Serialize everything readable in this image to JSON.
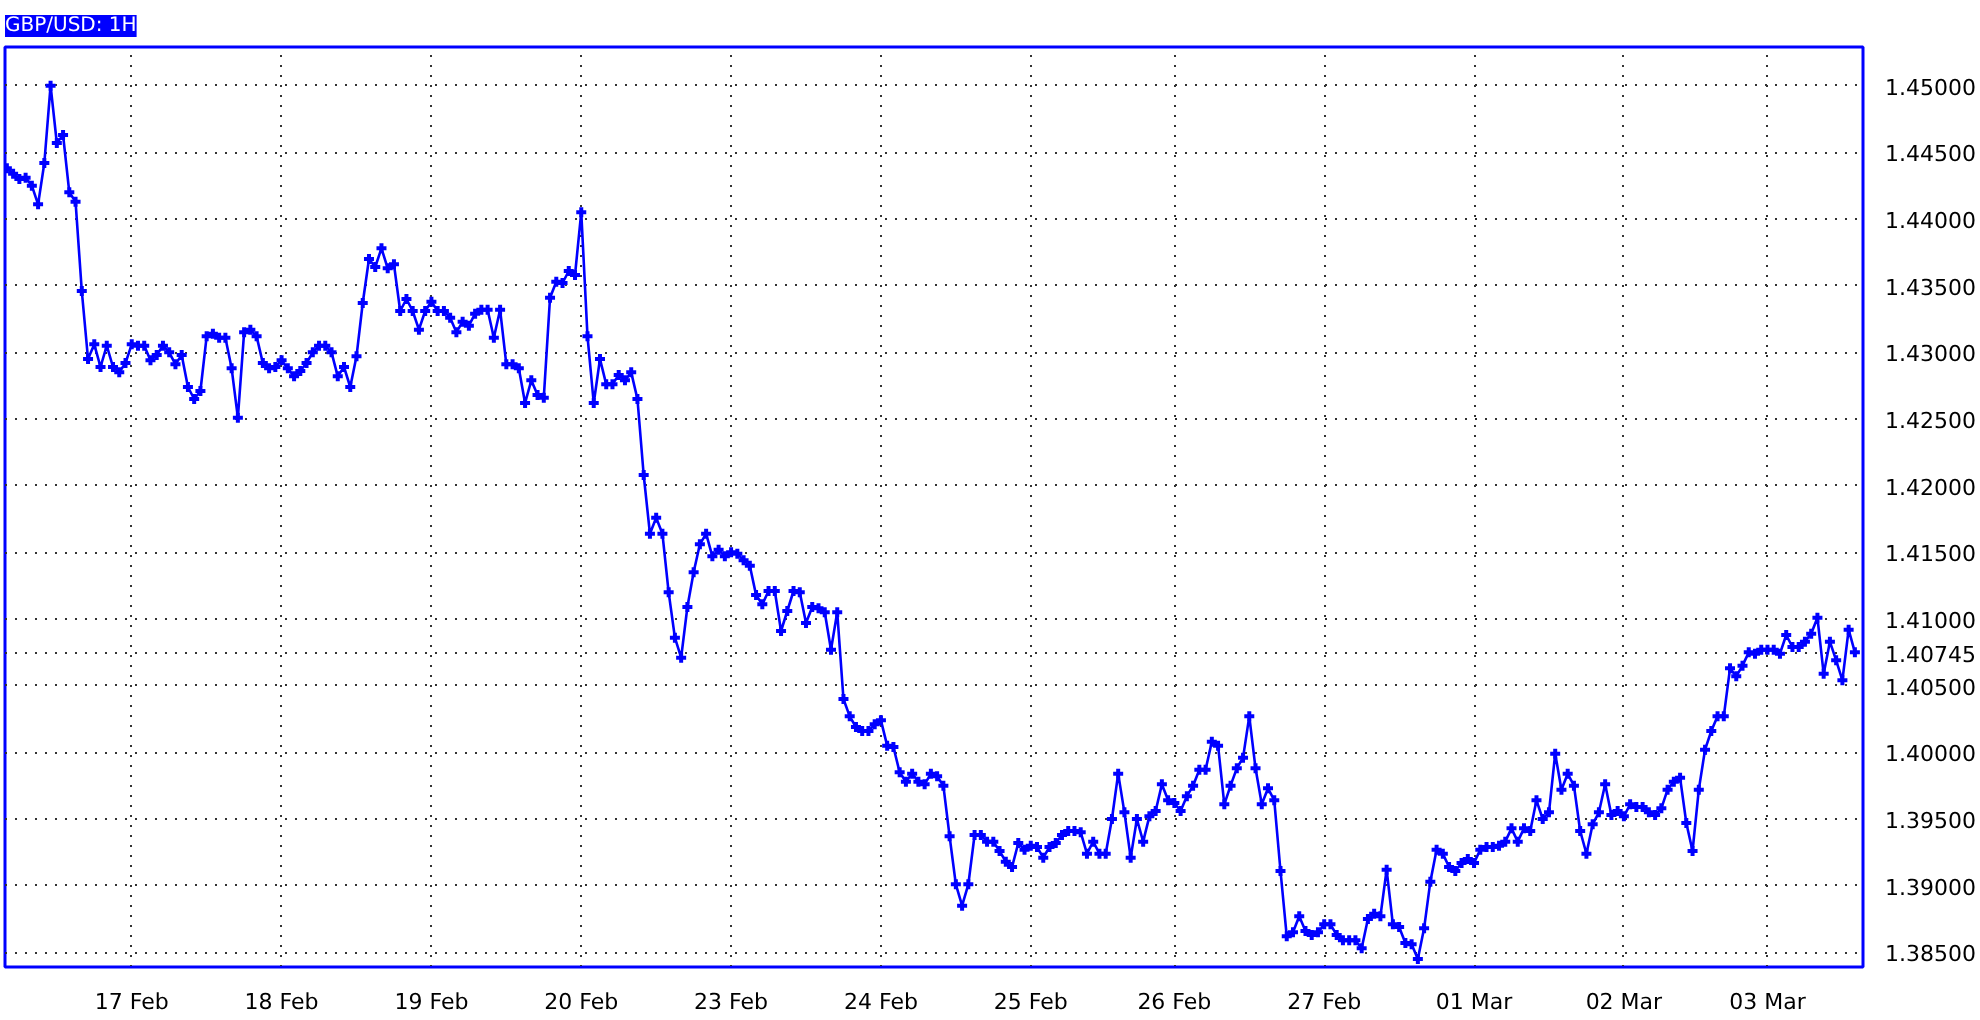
{
  "chart_data": {
    "type": "line",
    "title": "GBP/USD: 1H",
    "categories": [
      null,
      null,
      null,
      null,
      null,
      null,
      null,
      null,
      null,
      null,
      null,
      null,
      null,
      null,
      null,
      null,
      null,
      null,
      null,
      null,
      "17 Feb",
      null,
      null,
      null,
      null,
      null,
      null,
      null,
      null,
      null,
      null,
      null,
      null,
      null,
      null,
      null,
      null,
      null,
      null,
      null,
      null,
      null,
      null,
      null,
      "18 Feb",
      null,
      null,
      null,
      null,
      null,
      null,
      null,
      null,
      null,
      null,
      null,
      null,
      null,
      null,
      null,
      null,
      null,
      null,
      null,
      null,
      null,
      null,
      null,
      "19 Feb",
      null,
      null,
      null,
      null,
      null,
      null,
      null,
      null,
      null,
      null,
      null,
      null,
      null,
      null,
      null,
      null,
      null,
      null,
      null,
      null,
      null,
      null,
      null,
      "20 Feb",
      null,
      null,
      null,
      null,
      null,
      null,
      null,
      null,
      null,
      null,
      null,
      null,
      null,
      null,
      null,
      null,
      null,
      null,
      null,
      null,
      null,
      null,
      null,
      "23 Feb",
      null,
      null,
      null,
      null,
      null,
      null,
      null,
      null,
      null,
      null,
      null,
      null,
      null,
      null,
      null,
      null,
      null,
      null,
      null,
      null,
      null,
      null,
      null,
      "24 Feb",
      null,
      null,
      null,
      null,
      null,
      null,
      null,
      null,
      null,
      null,
      null,
      null,
      null,
      null,
      null,
      null,
      null,
      null,
      null,
      null,
      null,
      null,
      null,
      "25 Feb",
      null,
      null,
      null,
      null,
      null,
      null,
      null,
      null,
      null,
      null,
      null,
      null,
      null,
      null,
      null,
      null,
      null,
      null,
      null,
      null,
      null,
      null,
      "26 Feb",
      null,
      null,
      null,
      null,
      null,
      null,
      null,
      null,
      null,
      null,
      null,
      null,
      null,
      null,
      null,
      null,
      null,
      null,
      null,
      null,
      null,
      null,
      null,
      "27 Feb",
      null,
      null,
      null,
      null,
      null,
      null,
      null,
      null,
      null,
      null,
      null,
      null,
      null,
      null,
      null,
      null,
      null,
      null,
      null,
      null,
      null,
      null,
      null,
      "01 Mar",
      null,
      null,
      null,
      null,
      null,
      null,
      null,
      null,
      null,
      null,
      null,
      null,
      null,
      null,
      null,
      null,
      null,
      null,
      null,
      null,
      null,
      null,
      null,
      "02 Mar",
      null,
      null,
      null,
      null,
      null,
      null,
      null,
      null,
      null,
      null,
      null,
      null,
      null,
      null,
      null,
      null,
      null,
      null,
      null,
      null,
      null,
      null,
      "03 Mar",
      null,
      null,
      null,
      null,
      null,
      null,
      null,
      null,
      null,
      null,
      null,
      null,
      null,
      null
    ],
    "series": [
      {
        "color": "#0000ff",
        "values": [
          1.4438,
          1.4434,
          1.443,
          1.4431,
          1.4425,
          1.4411,
          1.4442,
          1.45,
          1.4457,
          1.4463,
          1.442,
          1.4413,
          1.4346,
          1.4295,
          1.4306,
          1.4289,
          1.4305,
          1.4289,
          1.4285,
          1.4292,
          1.4306,
          1.4305,
          1.4305,
          1.4294,
          1.4298,
          1.4305,
          1.43,
          1.4291,
          1.4298,
          1.4274,
          1.4265,
          1.4271,
          1.4312,
          1.4314,
          1.4311,
          1.4311,
          1.4288,
          1.4251,
          1.4315,
          1.4317,
          1.4312,
          1.4292,
          1.4288,
          1.4289,
          1.4294,
          1.4288,
          1.4282,
          1.4286,
          1.4292,
          1.43,
          1.4305,
          1.4305,
          1.43,
          1.4282,
          1.4289,
          1.4274,
          1.4297,
          1.4337,
          1.437,
          1.4364,
          1.4378,
          1.4363,
          1.4366,
          1.4331,
          1.434,
          1.4331,
          1.4317,
          1.4331,
          1.4338,
          1.4331,
          1.4331,
          1.4326,
          1.4315,
          1.4323,
          1.432,
          1.4329,
          1.4332,
          1.4332,
          1.4311,
          1.4332,
          1.4291,
          1.4291,
          1.4288,
          1.4262,
          1.4279,
          1.4268,
          1.4266,
          1.4341,
          1.4353,
          1.4352,
          1.4361,
          1.4358,
          1.4405,
          1.4312,
          1.4262,
          1.4295,
          1.4276,
          1.4276,
          1.4283,
          1.4279,
          1.4285,
          1.4265,
          1.4208,
          1.4164,
          1.4176,
          1.4164,
          1.412,
          1.4086,
          1.4071,
          1.4109,
          1.4135,
          1.4156,
          1.4164,
          1.4147,
          1.4152,
          1.4147,
          1.415,
          1.4149,
          1.4144,
          1.414,
          1.4118,
          1.4111,
          1.4121,
          1.4121,
          1.4091,
          1.4106,
          1.4121,
          1.412,
          1.4097,
          1.4109,
          1.4108,
          1.4105,
          1.4077,
          1.4105,
          1.404,
          1.4027,
          1.4019,
          1.4016,
          1.4016,
          1.4021,
          1.4024,
          1.4005,
          1.4004,
          1.3985,
          1.3978,
          1.3984,
          1.3978,
          1.3976,
          1.3984,
          1.3982,
          1.3975,
          1.3937,
          1.3901,
          1.3885,
          1.3901,
          1.3938,
          1.3938,
          1.3933,
          1.3933,
          1.3926,
          1.3918,
          1.3914,
          1.3932,
          1.3927,
          1.393,
          1.3929,
          1.3921,
          1.3929,
          1.3932,
          1.3938,
          1.3941,
          1.3941,
          1.394,
          1.3924,
          1.3933,
          1.3924,
          1.3924,
          1.395,
          1.3984,
          1.3955,
          1.3921,
          1.395,
          1.3933,
          1.3952,
          1.3956,
          1.3976,
          1.3964,
          1.3962,
          1.3956,
          1.3967,
          1.3975,
          1.3987,
          1.3987,
          1.4008,
          1.4005,
          1.3961,
          1.3975,
          1.3988,
          1.3996,
          1.4027,
          1.3988,
          1.3961,
          1.3973,
          1.3964,
          1.3911,
          1.3862,
          1.3865,
          1.3877,
          1.3866,
          1.3863,
          1.3865,
          1.3871,
          1.3871,
          1.3863,
          1.3859,
          1.3859,
          1.3859,
          1.3853,
          1.3875,
          1.3879,
          1.3877,
          1.3912,
          1.3871,
          1.3869,
          1.3857,
          1.3856,
          1.3845,
          1.3868,
          1.3903,
          1.3927,
          1.3924,
          1.3914,
          1.3911,
          1.3917,
          1.392,
          1.3917,
          1.3927,
          1.3929,
          1.3929,
          1.393,
          1.3933,
          1.3943,
          1.3933,
          1.3943,
          1.3941,
          1.3964,
          1.395,
          1.3955,
          1.3999,
          1.3972,
          1.3984,
          1.3975,
          1.3941,
          1.3924,
          1.3946,
          1.3955,
          1.3976,
          1.3953,
          1.3956,
          1.3952,
          1.3961,
          1.3959,
          1.3959,
          1.3955,
          1.3953,
          1.3958,
          1.3972,
          1.3978,
          1.3981,
          1.3947,
          1.3926,
          1.3972,
          1.4002,
          1.4016,
          1.4027,
          1.4027,
          1.4063,
          1.4057,
          1.4065,
          1.4075,
          1.4074,
          1.4077,
          1.4077,
          1.4077,
          1.4074,
          1.4088,
          1.4079,
          1.4079,
          1.4083,
          1.4089,
          1.4101,
          1.4059,
          1.4083,
          1.4069,
          1.4054,
          1.4092,
          1.4075
        ]
      }
    ],
    "ylim": [
      1.3839,
      1.4529
    ],
    "yticks": [
      {
        "value": 1.385,
        "label": "1.38500"
      },
      {
        "value": 1.39,
        "label": "1.39000"
      },
      {
        "value": 1.395,
        "label": "1.39500"
      },
      {
        "value": 1.4,
        "label": "1.40000"
      },
      {
        "value": 1.405,
        "label": "1.40500"
      },
      {
        "value": 1.40745,
        "label": "1.40745"
      },
      {
        "value": 1.41,
        "label": "1.41000"
      },
      {
        "value": 1.415,
        "label": "1.41500"
      },
      {
        "value": 1.42,
        "label": "1.42000"
      },
      {
        "value": 1.425,
        "label": "1.42500"
      },
      {
        "value": 1.43,
        "label": "1.43000"
      },
      {
        "value": 1.435,
        "label": "1.43500"
      },
      {
        "value": 1.44,
        "label": "1.44000"
      },
      {
        "value": 1.445,
        "label": "1.44500"
      },
      {
        "value": 1.45,
        "label": "1.45000"
      }
    ],
    "grid": true,
    "marker": "cross",
    "line_style": "solid"
  }
}
